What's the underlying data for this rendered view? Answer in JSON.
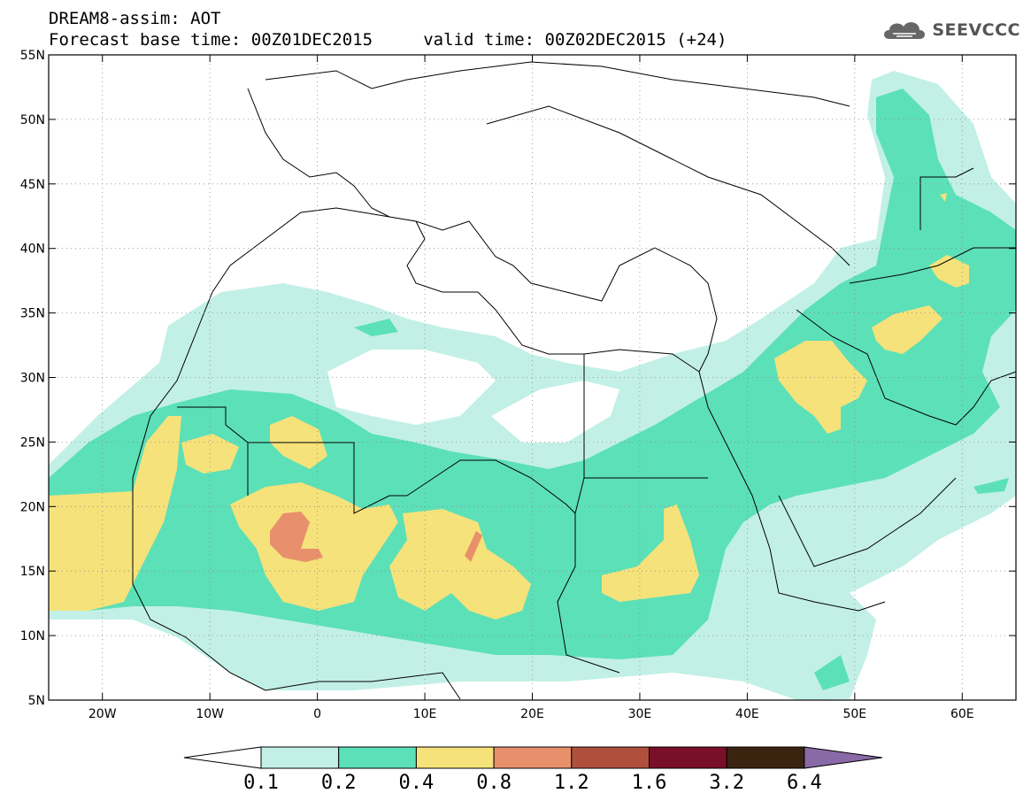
{
  "header": {
    "title_line1": "DREAM8-assim: AOT",
    "title_line2": "Forecast base time: 00Z01DEC2015     valid time: 00Z02DEC2015 (+24)"
  },
  "logo": {
    "text": "SEEVCCC",
    "icon": "cloud-icon"
  },
  "map": {
    "lon_labels": [
      "20W",
      "10W",
      "0",
      "10E",
      "20E",
      "30E",
      "40E",
      "50E",
      "60E"
    ],
    "lat_labels": [
      "55N",
      "50N",
      "45N",
      "40N",
      "35N",
      "30N",
      "25N",
      "20N",
      "15N",
      "10N",
      "5N"
    ],
    "lon_range": [
      -25,
      65
    ],
    "lat_range": [
      5,
      55
    ]
  },
  "colorbar": {
    "labels": [
      "0.1",
      "0.2",
      "0.4",
      "0.8",
      "1.2",
      "1.6",
      "3.2",
      "6.4"
    ],
    "colors": [
      "#ffffff",
      "#c2f0e6",
      "#5ce0b8",
      "#f5e27a",
      "#e8906c",
      "#b0503c",
      "#7a0f2a",
      "#3a2410",
      "#8a6aa6"
    ]
  },
  "chart_data": {
    "type": "heatmap",
    "title": "DREAM8-assim: AOT",
    "subtitle": "Forecast base time: 00Z01DEC2015     valid time: 00Z02DEC2015 (+24)",
    "x_ticks": [
      "20W",
      "10W",
      "0",
      "10E",
      "20E",
      "30E",
      "40E",
      "50E",
      "60E"
    ],
    "y_ticks": [
      "55N",
      "50N",
      "45N",
      "40N",
      "35N",
      "30N",
      "25N",
      "20N",
      "15N",
      "10N",
      "5N"
    ],
    "x_range": [
      -25,
      65
    ],
    "y_range": [
      5,
      55
    ],
    "levels": [
      0.1,
      0.2,
      0.4,
      0.8,
      1.2,
      1.6,
      3.2,
      6.4
    ],
    "colors": [
      "#c2f0e6",
      "#5ce0b8",
      "#f5e27a",
      "#e8906c",
      "#b0503c",
      "#7a0f2a",
      "#3a2410"
    ]
  }
}
